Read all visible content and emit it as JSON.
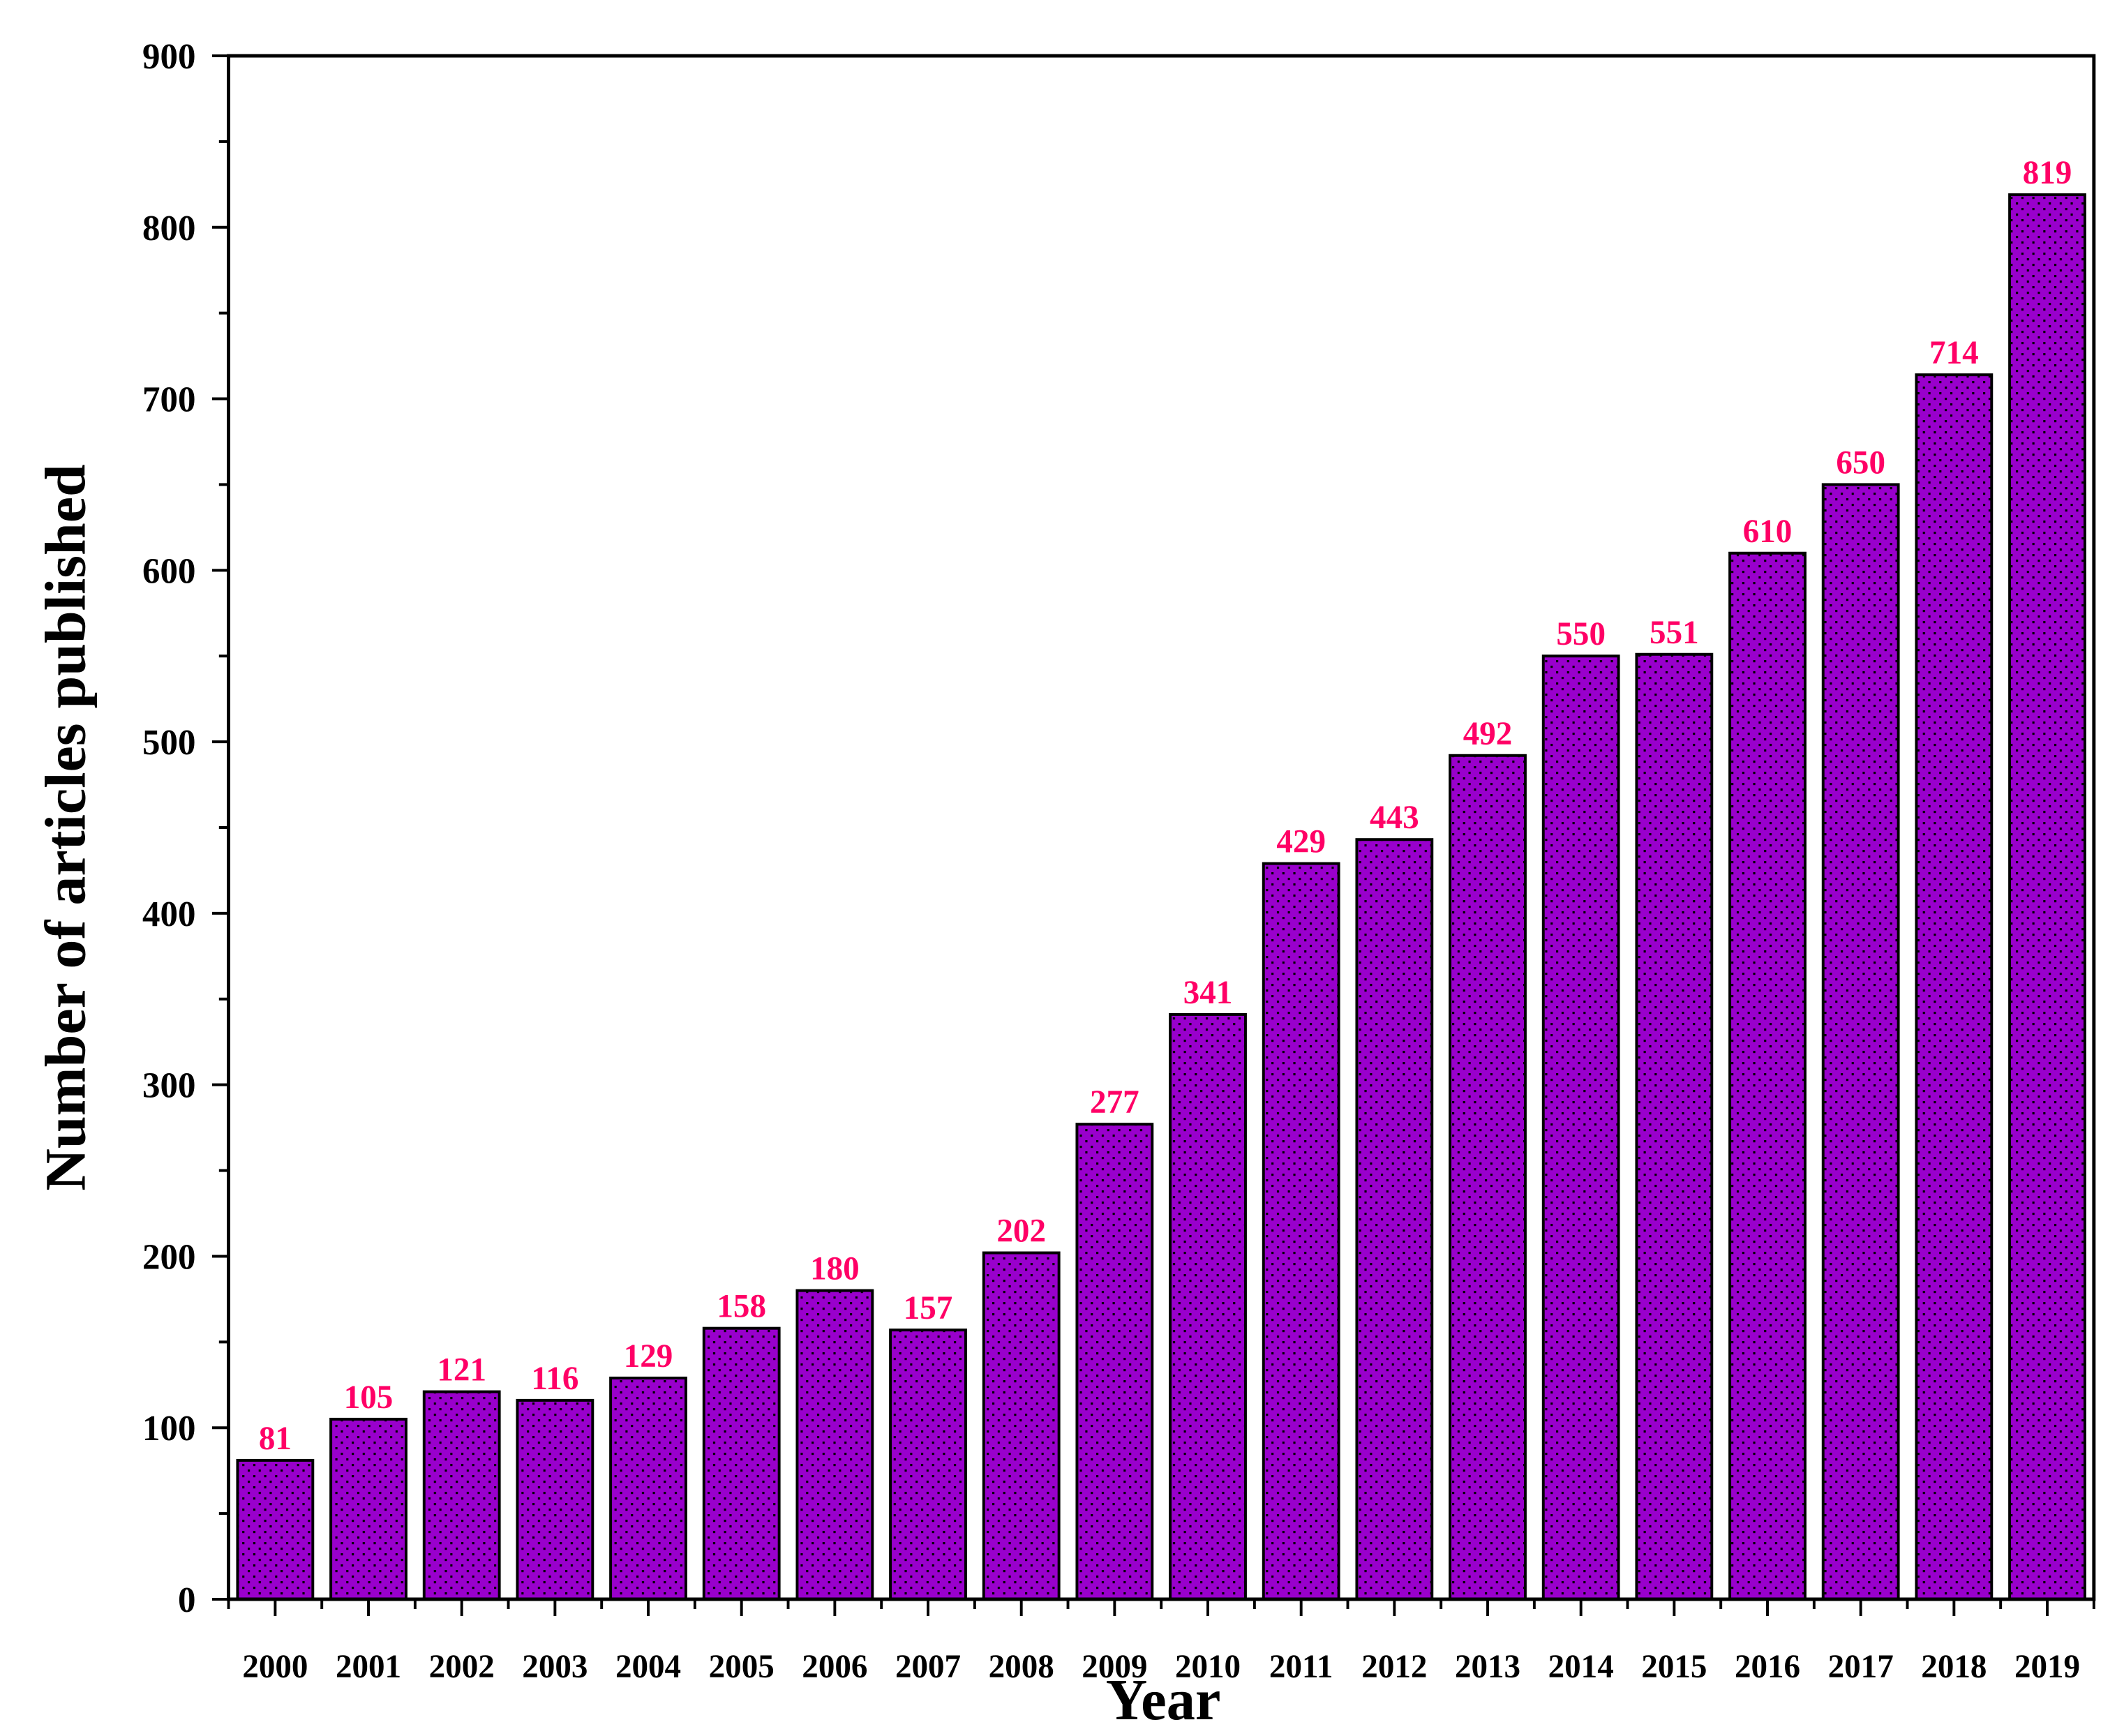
{
  "chart_data": {
    "type": "bar",
    "x_label": "Year",
    "y_label": "Number of articles published",
    "categories": [
      "2000",
      "2001",
      "2002",
      "2003",
      "2004",
      "2005",
      "2006",
      "2007",
      "2008",
      "2009",
      "2010",
      "2011",
      "2012",
      "2013",
      "2014",
      "2015",
      "2016",
      "2017",
      "2018",
      "2019"
    ],
    "values": [
      81,
      105,
      121,
      116,
      129,
      158,
      180,
      157,
      202,
      277,
      341,
      429,
      443,
      492,
      550,
      551,
      610,
      650,
      714,
      819
    ],
    "color": "#9900cc",
    "label_color": "#ff0066",
    "ylim": [
      0,
      900
    ],
    "yticks": [
      0,
      100,
      200,
      300,
      400,
      500,
      600,
      700,
      800,
      900
    ]
  }
}
